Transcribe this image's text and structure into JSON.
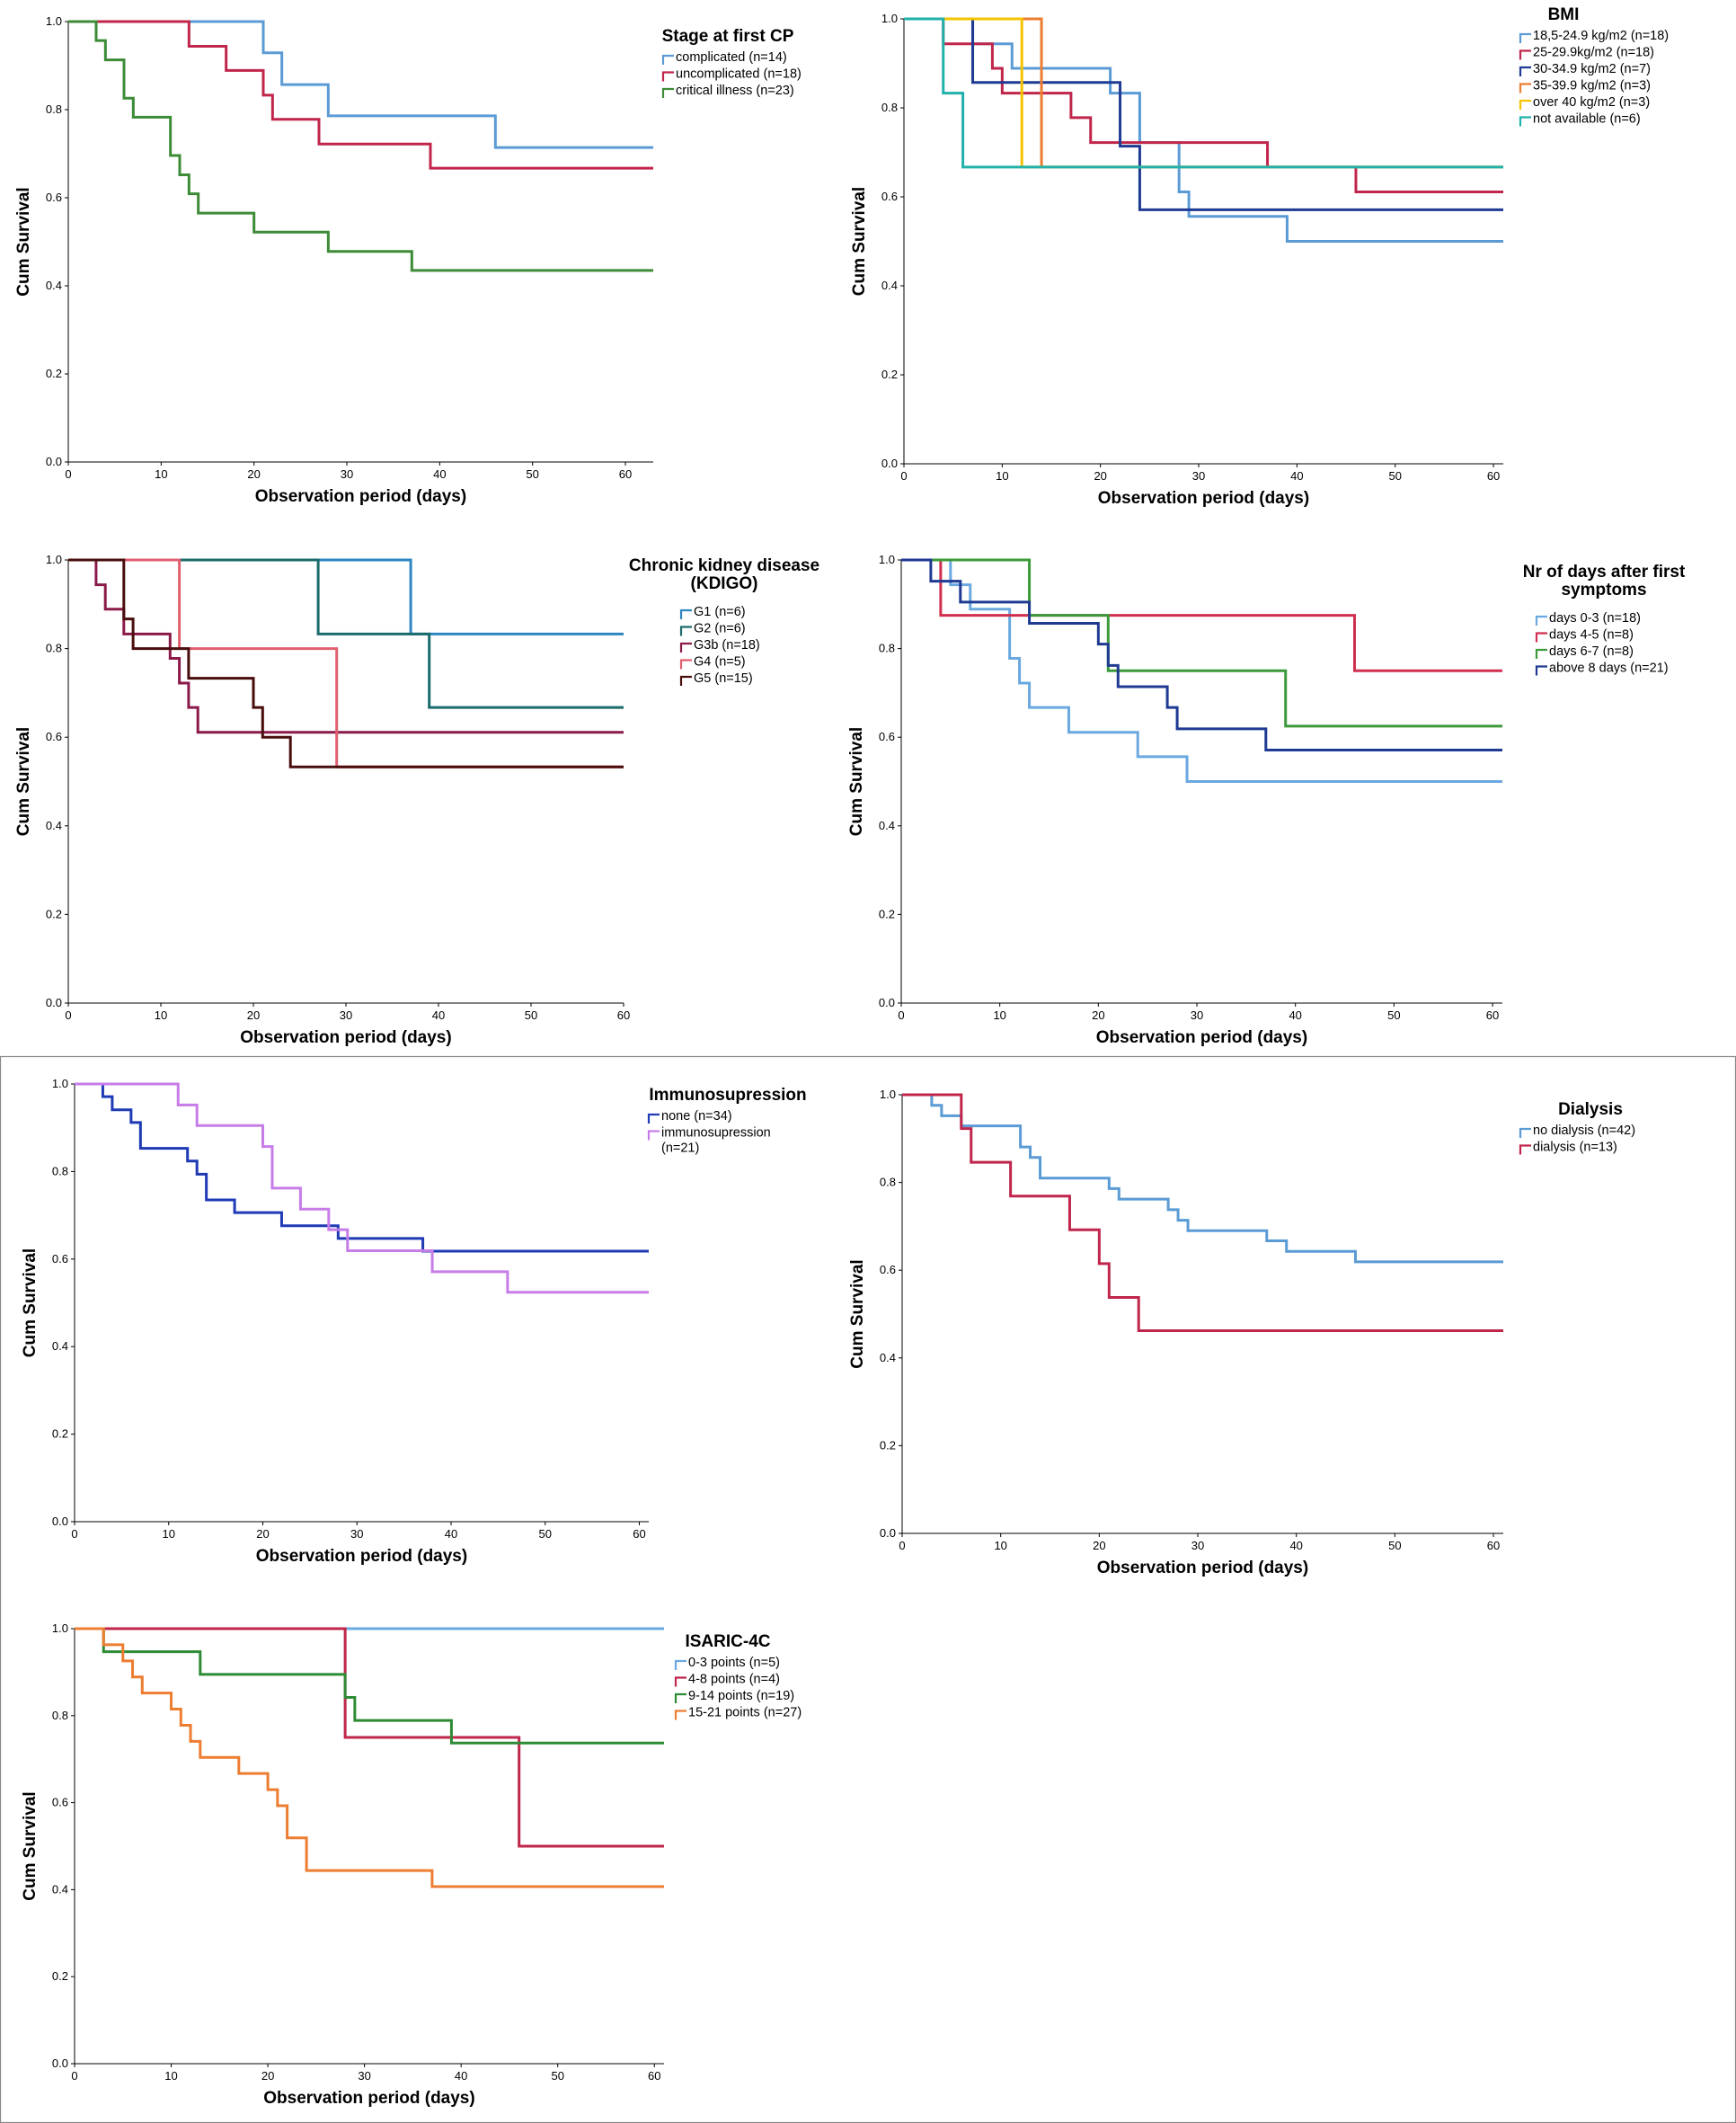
{
  "chart_data": [
    {
      "type": "line",
      "id": "stage",
      "title": "Stage at first CP",
      "xlabel": "Observation period (days)",
      "ylabel": "Cum Survival",
      "xlim": [
        0,
        63
      ],
      "ylim": [
        0,
        1
      ],
      "xticks": [
        0,
        10,
        20,
        30,
        40,
        50,
        60
      ],
      "yticks": [
        0.0,
        0.2,
        0.4,
        0.6,
        0.8,
        1.0
      ],
      "series": [
        {
          "name": "complicated (n=14)",
          "color": "#5b9bd5",
          "x": [
            0,
            21,
            23,
            28,
            46,
            63
          ],
          "y": [
            1.0,
            0.929,
            0.857,
            0.786,
            0.714,
            0.714
          ]
        },
        {
          "name": "uncomplicated (n=18)",
          "color": "#c0264b",
          "x": [
            0,
            13,
            17,
            21,
            22,
            27,
            39,
            63
          ],
          "y": [
            1.0,
            0.944,
            0.889,
            0.833,
            0.778,
            0.722,
            0.667,
            0.667
          ]
        },
        {
          "name": "critical illness (n=23)",
          "color": "#3d8b37",
          "x": [
            0,
            3,
            4,
            6,
            7,
            11,
            12,
            13,
            14,
            20,
            28,
            37,
            63
          ],
          "y": [
            1.0,
            0.957,
            0.913,
            0.826,
            0.783,
            0.696,
            0.652,
            0.609,
            0.565,
            0.522,
            0.478,
            0.435,
            0.435
          ]
        }
      ]
    },
    {
      "type": "line",
      "id": "bmi",
      "title": "BMI",
      "xlabel": "Observation period (days)",
      "ylabel": "Cum Survival",
      "xlim": [
        0,
        61
      ],
      "ylim": [
        0,
        1
      ],
      "xticks": [
        0,
        10,
        20,
        30,
        40,
        50,
        60
      ],
      "yticks": [
        0.0,
        0.2,
        0.4,
        0.6,
        0.8,
        1.0
      ],
      "series": [
        {
          "name": "18,5-24.9 kg/m2 (n=18)",
          "color": "#5b9bd5",
          "x": [
            0,
            7,
            11,
            21,
            24,
            28,
            29,
            39,
            61
          ],
          "y": [
            1.0,
            0.944,
            0.889,
            0.833,
            0.722,
            0.611,
            0.556,
            0.5,
            0.5
          ]
        },
        {
          "name": "25-29.9kg/m2 (n=18)",
          "color": "#c0264b",
          "x": [
            0,
            4,
            9,
            10,
            12,
            17,
            19,
            37,
            46,
            61
          ],
          "y": [
            1.0,
            0.944,
            0.889,
            0.833,
            0.833,
            0.778,
            0.722,
            0.667,
            0.611,
            0.611
          ]
        },
        {
          "name": "30-34.9 kg/m2 (n=7)",
          "color": "#1f3a93",
          "x": [
            0,
            7,
            22,
            24,
            61
          ],
          "y": [
            1.0,
            0.857,
            0.714,
            0.571,
            0.571
          ]
        },
        {
          "name": "35-39.9 kg/m2 (n=3)",
          "color": "#ed7d31",
          "x": [
            0,
            14,
            61
          ],
          "y": [
            1.0,
            0.667,
            0.667
          ]
        },
        {
          "name": "over 40 kg/m2 (n=3)",
          "color": "#f5c400",
          "x": [
            0,
            12,
            61
          ],
          "y": [
            1.0,
            0.667,
            0.667
          ]
        },
        {
          "name": "not available (n=6)",
          "color": "#20b2aa",
          "x": [
            0,
            4,
            6,
            61
          ],
          "y": [
            1.0,
            0.833,
            0.667,
            0.667
          ]
        }
      ]
    },
    {
      "type": "line",
      "id": "ckd",
      "title": "Chronic kidney disease (KDIGO)",
      "xlabel": "Observation period (days)",
      "ylabel": "Cum Survival",
      "xlim": [
        0,
        60
      ],
      "ylim": [
        0,
        1
      ],
      "xticks": [
        0,
        10,
        20,
        30,
        40,
        50,
        60
      ],
      "yticks": [
        0.0,
        0.2,
        0.4,
        0.6,
        0.8,
        1.0
      ],
      "series": [
        {
          "name": "G1 (n=6)",
          "color": "#2e86c1",
          "x": [
            0,
            37,
            60
          ],
          "y": [
            1.0,
            0.833,
            0.833
          ]
        },
        {
          "name": "G2 (n=6)",
          "color": "#1b6b6b",
          "x": [
            0,
            27,
            39,
            60
          ],
          "y": [
            1.0,
            0.833,
            0.667,
            0.667
          ]
        },
        {
          "name": "G3b (n=18)",
          "color": "#8b1a4a",
          "x": [
            0,
            3,
            4,
            6,
            11,
            12,
            13,
            14,
            20,
            60
          ],
          "y": [
            1.0,
            0.944,
            0.889,
            0.833,
            0.778,
            0.722,
            0.667,
            0.611,
            0.611,
            0.611
          ]
        },
        {
          "name": "G4 (n=5)",
          "color": "#e06070",
          "x": [
            0,
            12,
            29,
            60
          ],
          "y": [
            1.0,
            0.8,
            0.533,
            0.533
          ]
        },
        {
          "name": "G5 (n=15)",
          "color": "#4a0d0d",
          "x": [
            0,
            6,
            7,
            13,
            20,
            21,
            22,
            24,
            60
          ],
          "y": [
            1.0,
            0.867,
            0.8,
            0.733,
            0.667,
            0.6,
            0.6,
            0.533,
            0.533
          ]
        }
      ]
    },
    {
      "type": "line",
      "id": "days",
      "title": "Nr of days after first symptoms",
      "xlabel": "Observation period (days)",
      "ylabel": "Cum Survival",
      "xlim": [
        0,
        61
      ],
      "ylim": [
        0,
        1
      ],
      "xticks": [
        0,
        10,
        20,
        30,
        40,
        50,
        60
      ],
      "yticks": [
        0.0,
        0.2,
        0.4,
        0.6,
        0.8,
        1.0
      ],
      "series": [
        {
          "name": "days 0-3 (n=18)",
          "color": "#6aa8e0",
          "x": [
            0,
            5,
            7,
            11,
            12,
            13,
            17,
            24,
            29,
            61
          ],
          "y": [
            1.0,
            0.944,
            0.889,
            0.778,
            0.722,
            0.667,
            0.611,
            0.556,
            0.5,
            0.5
          ]
        },
        {
          "name": "days 4-5 (n=8)",
          "color": "#d0304f",
          "x": [
            0,
            4,
            46,
            61
          ],
          "y": [
            1.0,
            0.875,
            0.75,
            0.75
          ]
        },
        {
          "name": "days 6-7 (n=8)",
          "color": "#3d9a3a",
          "x": [
            0,
            13,
            21,
            39,
            61
          ],
          "y": [
            1.0,
            0.875,
            0.75,
            0.625,
            0.625
          ]
        },
        {
          "name": "above 8 days (n=21)",
          "color": "#1f3a93",
          "x": [
            0,
            3,
            6,
            13,
            20,
            21,
            22,
            27,
            28,
            37,
            61
          ],
          "y": [
            1.0,
            0.952,
            0.905,
            0.857,
            0.81,
            0.762,
            0.714,
            0.667,
            0.619,
            0.571,
            0.571
          ]
        }
      ]
    },
    {
      "type": "line",
      "id": "immuno",
      "title": "Immunosupression",
      "xlabel": "Observation period (days)",
      "ylabel": "Cum Survival",
      "xlim": [
        0,
        61
      ],
      "ylim": [
        0,
        1
      ],
      "xticks": [
        0,
        10,
        20,
        30,
        40,
        50,
        60
      ],
      "yticks": [
        0.0,
        0.2,
        0.4,
        0.6,
        0.8,
        1.0
      ],
      "series": [
        {
          "name": "none (n=34)",
          "color": "#1f3ab5",
          "x": [
            0,
            3,
            4,
            6,
            7,
            12,
            13,
            14,
            17,
            22,
            28,
            37,
            61
          ],
          "y": [
            1.0,
            0.971,
            0.941,
            0.912,
            0.853,
            0.824,
            0.794,
            0.735,
            0.706,
            0.676,
            0.647,
            0.618,
            0.618
          ]
        },
        {
          "name": "immunosupression (n=21)",
          "color": "#c77de8",
          "x": [
            0,
            11,
            13,
            20,
            21,
            24,
            27,
            29,
            38,
            46,
            61
          ],
          "y": [
            1.0,
            0.952,
            0.905,
            0.857,
            0.762,
            0.714,
            0.667,
            0.619,
            0.571,
            0.524,
            0.524
          ]
        }
      ]
    },
    {
      "type": "line",
      "id": "dialysis",
      "title": "Dialysis",
      "xlabel": "Observation period (days)",
      "ylabel": "Cum Survival",
      "xlim": [
        0,
        61
      ],
      "ylim": [
        0,
        1
      ],
      "xticks": [
        0,
        10,
        20,
        30,
        40,
        50,
        60
      ],
      "yticks": [
        0.0,
        0.2,
        0.4,
        0.6,
        0.8,
        1.0
      ],
      "series": [
        {
          "name": "no dialysis (n=42)",
          "color": "#5b9bd5",
          "x": [
            0,
            3,
            4,
            6,
            12,
            13,
            14,
            21,
            22,
            27,
            28,
            29,
            37,
            39,
            46,
            61
          ],
          "y": [
            1.0,
            0.976,
            0.952,
            0.929,
            0.881,
            0.857,
            0.81,
            0.786,
            0.762,
            0.738,
            0.714,
            0.69,
            0.667,
            0.643,
            0.619,
            0.619
          ]
        },
        {
          "name": "dialysis (n=13)",
          "color": "#c0264b",
          "x": [
            0,
            6,
            7,
            11,
            17,
            20,
            21,
            24,
            61
          ],
          "y": [
            1.0,
            0.923,
            0.846,
            0.769,
            0.692,
            0.615,
            0.538,
            0.462,
            0.462
          ]
        }
      ]
    },
    {
      "type": "line",
      "id": "isaric",
      "title": "ISARIC-4C",
      "xlabel": "Observation period (days)",
      "ylabel": "Cum Survival",
      "xlim": [
        0,
        61
      ],
      "ylim": [
        0,
        1
      ],
      "xticks": [
        0,
        10,
        20,
        30,
        40,
        50,
        60
      ],
      "yticks": [
        0.0,
        0.2,
        0.4,
        0.6,
        0.8,
        1.0
      ],
      "series": [
        {
          "name": "0-3 points (n=5)",
          "color": "#6aa8e0",
          "x": [
            0,
            61
          ],
          "y": [
            1.0,
            1.0
          ]
        },
        {
          "name": "4-8 points (n=4)",
          "color": "#c0264b",
          "x": [
            0,
            28,
            46,
            61
          ],
          "y": [
            1.0,
            0.75,
            0.5,
            0.5
          ]
        },
        {
          "name": "9-14 points (n=19)",
          "color": "#2e8b35",
          "x": [
            0,
            3,
            5,
            13,
            28,
            29,
            39,
            61
          ],
          "y": [
            1.0,
            0.947,
            0.947,
            0.895,
            0.842,
            0.789,
            0.737,
            0.737
          ]
        },
        {
          "name": "15-21 points (n=27)",
          "color": "#ed7d31",
          "x": [
            0,
            3,
            5,
            6,
            7,
            10,
            11,
            12,
            13,
            17,
            20,
            21,
            22,
            24,
            37,
            61
          ],
          "y": [
            1.0,
            0.963,
            0.926,
            0.889,
            0.852,
            0.815,
            0.778,
            0.741,
            0.704,
            0.667,
            0.63,
            0.593,
            0.519,
            0.444,
            0.407,
            0.407
          ]
        }
      ]
    }
  ]
}
